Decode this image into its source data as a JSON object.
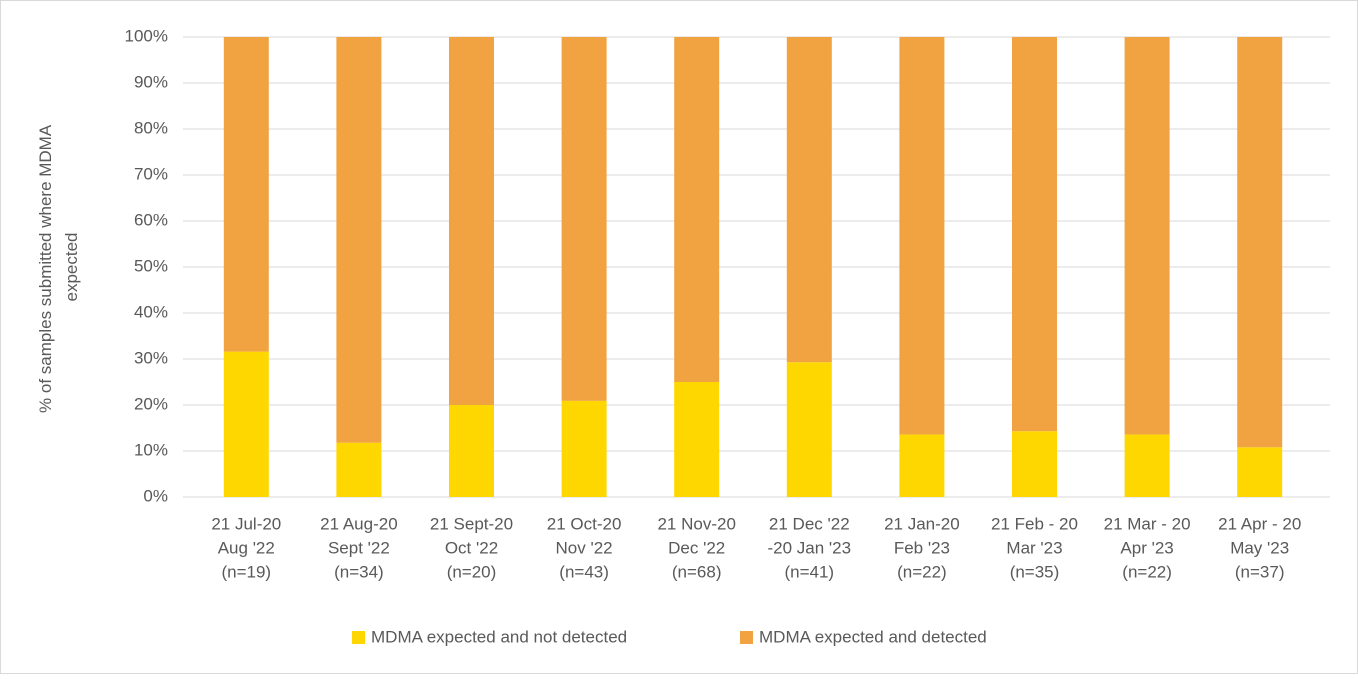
{
  "chart_data": {
    "type": "stacked_bar",
    "ylabel": [
      "% of samples submitted where MDMA",
      "expected"
    ],
    "categories": [
      [
        "21 Jul-20",
        "Aug '22",
        "(n=19)"
      ],
      [
        "21 Aug-20",
        "Sept '22",
        "(n=34)"
      ],
      [
        "21 Sept-20",
        "Oct '22",
        "(n=20)"
      ],
      [
        "21 Oct-20",
        "Nov '22",
        "(n=43)"
      ],
      [
        "21 Nov-20",
        "Dec '22",
        "(n=68)"
      ],
      [
        "21 Dec '22",
        "-20 Jan '23",
        "(n=41)"
      ],
      [
        "21 Jan-20",
        "Feb '23",
        "(n=22)"
      ],
      [
        "21 Feb - 20",
        "Mar '23",
        "(n=35)"
      ],
      [
        "21 Mar - 20",
        "Apr '23",
        "(n=22)"
      ],
      [
        "21 Apr - 20",
        "May '23",
        "(n=37)"
      ]
    ],
    "series": [
      {
        "name": "MDMA expected and not detected",
        "color": "#ffd700",
        "values": [
          31.6,
          11.8,
          20,
          20.9,
          25,
          29.3,
          13.6,
          14.3,
          13.6,
          10.8
        ]
      },
      {
        "name": "MDMA expected and detected",
        "color": "#f0a340",
        "values": [
          68.4,
          88.2,
          80,
          79.1,
          75,
          70.7,
          86.4,
          85.7,
          86.4,
          89.2
        ]
      }
    ],
    "ylim": [
      0,
      100
    ],
    "yticks": [
      {
        "value": 0,
        "label": "0%"
      },
      {
        "value": 10,
        "label": "10%"
      },
      {
        "value": 20,
        "label": "20%"
      },
      {
        "value": 30,
        "label": "30%"
      },
      {
        "value": 40,
        "label": "40%"
      },
      {
        "value": 50,
        "label": "50%"
      },
      {
        "value": 60,
        "label": "60%"
      },
      {
        "value": 70,
        "label": "70%"
      },
      {
        "value": 80,
        "label": "80%"
      },
      {
        "value": 90,
        "label": "90%"
      },
      {
        "value": 100,
        "label": "100%"
      }
    ],
    "grid": true,
    "legend": "bottom"
  }
}
